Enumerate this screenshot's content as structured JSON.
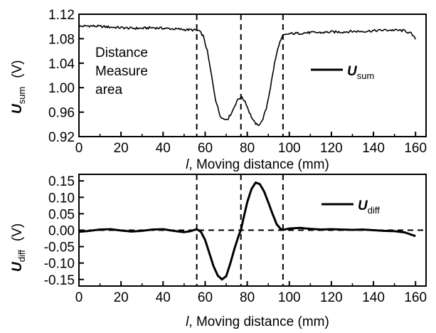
{
  "chart_data": [
    {
      "type": "line",
      "ylabel_main": "U",
      "ylabel_sub": "sum",
      "ylabel_unit": "(V)",
      "xlabel_italic": "l",
      "xlabel_rest": ", Moving distance (mm)",
      "xlim": [
        0,
        165
      ],
      "ylim": [
        0.92,
        1.12
      ],
      "xticks": [
        "0",
        "20",
        "40",
        "60",
        "80",
        "100",
        "120",
        "140",
        "160"
      ],
      "yticks": [
        "0.92",
        "0.96",
        "1.00",
        "1.04",
        "1.08",
        "1.12"
      ],
      "vlines": [
        56,
        77,
        97
      ],
      "annotation": [
        "Distance",
        "Measure",
        "area"
      ],
      "legend": {
        "main": "U",
        "sub": "sum"
      },
      "series": [
        {
          "name": "U_sum",
          "x": [
            0,
            5,
            10,
            15,
            20,
            25,
            30,
            35,
            40,
            45,
            50,
            55,
            57,
            59,
            61,
            63,
            65,
            67,
            69,
            71,
            73,
            75,
            77,
            79,
            81,
            83,
            85,
            87,
            89,
            91,
            93,
            95,
            97,
            100,
            105,
            110,
            115,
            120,
            125,
            130,
            135,
            140,
            145,
            150,
            155,
            158,
            160
          ],
          "y": [
            1.1,
            1.101,
            1.1,
            1.099,
            1.098,
            1.097,
            1.097,
            1.098,
            1.097,
            1.096,
            1.095,
            1.094,
            1.093,
            1.085,
            1.06,
            1.02,
            0.98,
            0.955,
            0.948,
            0.95,
            0.962,
            0.978,
            0.985,
            0.978,
            0.96,
            0.945,
            0.938,
            0.945,
            0.965,
            1.0,
            1.04,
            1.07,
            1.085,
            1.088,
            1.089,
            1.09,
            1.09,
            1.091,
            1.091,
            1.092,
            1.092,
            1.093,
            1.094,
            1.094,
            1.093,
            1.088,
            1.079
          ]
        }
      ]
    },
    {
      "type": "line",
      "ylabel_main": "U",
      "ylabel_sub": "diff",
      "ylabel_unit": "(V)",
      "xlabel_italic": "l",
      "xlabel_rest": ", Moving distance (mm)",
      "xlim": [
        0,
        165
      ],
      "ylim": [
        -0.17,
        0.17
      ],
      "xticks": [
        "0",
        "20",
        "40",
        "60",
        "80",
        "100",
        "120",
        "140",
        "160"
      ],
      "yticks": [
        "0.15",
        "0.10",
        "0.05",
        "0.00",
        "-0.05",
        "-0.10",
        "-0.15"
      ],
      "vlines": [
        56,
        77,
        97
      ],
      "hline": 0,
      "legend": {
        "main": "U",
        "sub": "diff"
      },
      "series": [
        {
          "name": "U_diff",
          "x": [
            0,
            5,
            10,
            15,
            20,
            25,
            30,
            35,
            40,
            45,
            50,
            53,
            56,
            58,
            60,
            62,
            64,
            66,
            68,
            70,
            72,
            74,
            76,
            77,
            78,
            80,
            82,
            84,
            86,
            88,
            90,
            92,
            94,
            96,
            97,
            100,
            105,
            110,
            115,
            120,
            125,
            130,
            135,
            140,
            145,
            150,
            155,
            160
          ],
          "y": [
            -0.005,
            -0.002,
            0.002,
            0.003,
            -0.001,
            -0.004,
            -0.002,
            0.002,
            0.003,
            -0.002,
            -0.006,
            -0.003,
            0.003,
            -0.005,
            -0.03,
            -0.07,
            -0.11,
            -0.138,
            -0.15,
            -0.14,
            -0.1,
            -0.055,
            -0.015,
            0.0,
            0.03,
            0.085,
            0.125,
            0.145,
            0.14,
            0.118,
            0.085,
            0.05,
            0.018,
            0.003,
            0.001,
            0.005,
            0.007,
            0.004,
            0.002,
            0.003,
            0.002,
            0.001,
            0.002,
            0.0,
            -0.002,
            -0.003,
            -0.007,
            -0.018
          ]
        }
      ]
    }
  ]
}
